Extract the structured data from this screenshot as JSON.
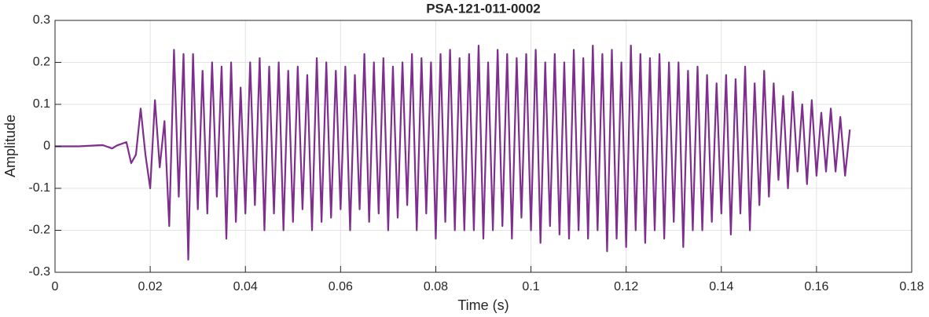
{
  "chart_data": {
    "type": "line",
    "title": "PSA-121-011-0002",
    "xlabel": "Time (s)",
    "ylabel": "Amplitude",
    "color": "#7e2f8e",
    "grid": true,
    "x": [
      0,
      0.005,
      0.01,
      0.012,
      0.013,
      0.015,
      0.016,
      0.017,
      0.018,
      0.019,
      0.02,
      0.021,
      0.022,
      0.023,
      0.024,
      0.025,
      0.026,
      0.027,
      0.028,
      0.029,
      0.03,
      0.031,
      0.032,
      0.033,
      0.034,
      0.035,
      0.036,
      0.037,
      0.038,
      0.039,
      0.04,
      0.041,
      0.042,
      0.043,
      0.044,
      0.045,
      0.046,
      0.047,
      0.048,
      0.049,
      0.05,
      0.051,
      0.052,
      0.053,
      0.054,
      0.055,
      0.056,
      0.057,
      0.058,
      0.059,
      0.06,
      0.061,
      0.062,
      0.063,
      0.064,
      0.065,
      0.066,
      0.067,
      0.068,
      0.069,
      0.07,
      0.071,
      0.072,
      0.073,
      0.074,
      0.075,
      0.076,
      0.077,
      0.078,
      0.079,
      0.08,
      0.081,
      0.082,
      0.083,
      0.084,
      0.085,
      0.086,
      0.087,
      0.088,
      0.089,
      0.09,
      0.091,
      0.092,
      0.093,
      0.094,
      0.095,
      0.096,
      0.097,
      0.098,
      0.099,
      0.1,
      0.101,
      0.102,
      0.103,
      0.104,
      0.105,
      0.106,
      0.107,
      0.108,
      0.109,
      0.11,
      0.111,
      0.112,
      0.113,
      0.114,
      0.115,
      0.116,
      0.117,
      0.118,
      0.119,
      0.12,
      0.121,
      0.122,
      0.123,
      0.124,
      0.125,
      0.126,
      0.127,
      0.128,
      0.129,
      0.13,
      0.131,
      0.132,
      0.133,
      0.134,
      0.135,
      0.136,
      0.137,
      0.138,
      0.139,
      0.14,
      0.141,
      0.142,
      0.143,
      0.144,
      0.145,
      0.146,
      0.147,
      0.148,
      0.149,
      0.15,
      0.151,
      0.152,
      0.153,
      0.154,
      0.155,
      0.156,
      0.157,
      0.158,
      0.159,
      0.16,
      0.161,
      0.162,
      0.163,
      0.164,
      0.165,
      0.166,
      0.167
    ],
    "values": [
      0,
      0,
      0.003,
      -0.005,
      0.002,
      0.01,
      -0.04,
      -0.02,
      0.09,
      -0.02,
      -0.1,
      0.11,
      -0.05,
      0.06,
      -0.19,
      0.23,
      -0.12,
      0.22,
      -0.27,
      0.22,
      -0.15,
      0.18,
      -0.16,
      0.2,
      -0.12,
      0.19,
      -0.22,
      0.2,
      -0.18,
      0.14,
      -0.16,
      0.2,
      -0.14,
      0.21,
      -0.2,
      0.19,
      -0.16,
      0.2,
      -0.2,
      0.18,
      -0.18,
      0.19,
      -0.15,
      0.17,
      -0.2,
      0.21,
      -0.18,
      0.2,
      -0.17,
      0.18,
      -0.15,
      0.19,
      -0.2,
      0.17,
      -0.15,
      0.22,
      -0.18,
      0.2,
      -0.16,
      0.21,
      -0.2,
      0.19,
      -0.17,
      0.2,
      -0.14,
      0.22,
      -0.2,
      0.21,
      -0.16,
      0.2,
      -0.22,
      0.22,
      -0.18,
      0.23,
      -0.2,
      0.21,
      -0.2,
      0.22,
      -0.2,
      0.24,
      -0.22,
      0.2,
      -0.2,
      0.23,
      -0.19,
      0.22,
      -0.22,
      0.21,
      -0.17,
      0.22,
      -0.2,
      0.23,
      -0.23,
      0.2,
      -0.19,
      0.22,
      -0.21,
      0.2,
      -0.22,
      0.23,
      -0.2,
      0.21,
      -0.22,
      0.24,
      -0.2,
      0.22,
      -0.25,
      0.23,
      -0.22,
      0.2,
      -0.24,
      0.24,
      -0.2,
      0.22,
      -0.23,
      0.21,
      -0.2,
      0.22,
      -0.22,
      0.2,
      -0.18,
      0.2,
      -0.24,
      0.18,
      -0.2,
      0.19,
      -0.2,
      0.17,
      -0.18,
      0.15,
      -0.16,
      0.17,
      -0.21,
      0.16,
      -0.16,
      0.19,
      -0.2,
      0.15,
      -0.14,
      0.18,
      -0.12,
      0.15,
      -0.08,
      0.12,
      -0.1,
      0.13,
      -0.06,
      0.1,
      -0.09,
      0.11,
      -0.07,
      0.08,
      -0.06,
      0.09,
      -0.06,
      0.07,
      -0.07,
      0.04
    ],
    "xlim": [
      0,
      0.18
    ],
    "xticks": [
      0,
      0.02,
      0.04,
      0.06,
      0.08,
      0.1,
      0.12,
      0.14,
      0.16,
      0.18
    ],
    "ylim": [
      -0.3,
      0.3
    ],
    "yticks": [
      -0.3,
      -0.2,
      -0.1,
      0,
      0.1,
      0.2,
      0.3
    ]
  }
}
